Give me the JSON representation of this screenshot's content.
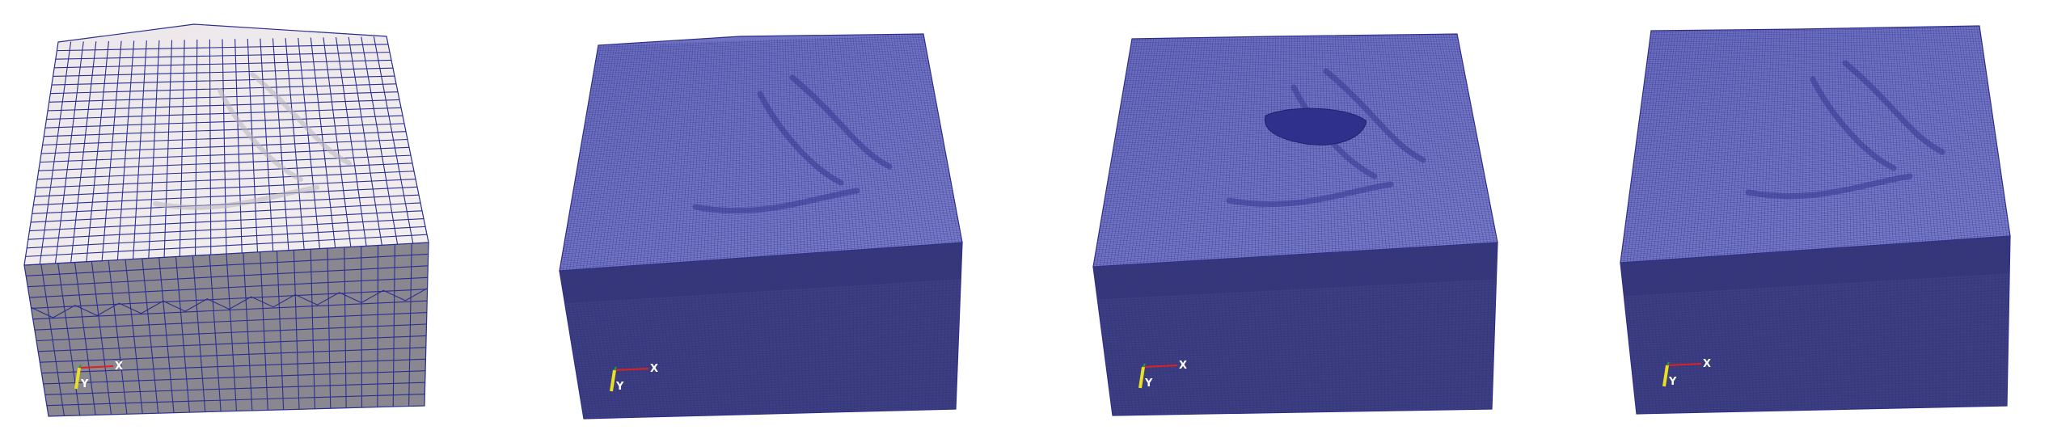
{
  "figure": {
    "panels": [
      {
        "id": "coarse",
        "variant": "coarse",
        "refined_patch": false,
        "axes": {
          "x_label": "X",
          "y_label": "Y"
        }
      },
      {
        "id": "fine",
        "variant": "fine",
        "refined_patch": false,
        "axes": {
          "x_label": "X",
          "y_label": "Y"
        }
      },
      {
        "id": "fine-refined",
        "variant": "fine",
        "refined_patch": true,
        "axes": {
          "x_label": "X",
          "y_label": "Y"
        }
      },
      {
        "id": "fine-adaptive",
        "variant": "fine",
        "refined_patch": false,
        "axes": {
          "x_label": "X",
          "y_label": "Y"
        }
      }
    ],
    "colors": {
      "coarse_top_fill": "#ece7ea",
      "coarse_side_fill": "#8a8790",
      "coarse_line": "#2a2e8c",
      "fine_top_fill": "#6c6fbf",
      "fine_top_dark": "#3a3c96",
      "fine_side_fill": "#3d3f7e",
      "fine_line": "#2b2d8a",
      "axis_x": "#e02020",
      "axis_y": "#e8e020",
      "axis_z": "#20a040"
    }
  }
}
